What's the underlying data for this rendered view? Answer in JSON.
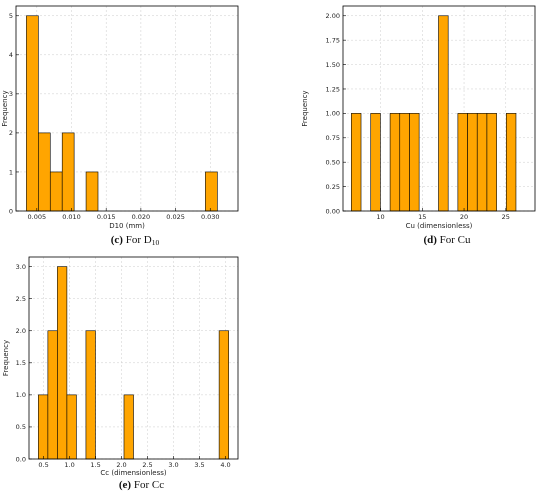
{
  "bar_color": "#FFA500",
  "chart_data": [
    {
      "type": "bar",
      "title": "",
      "xlabel": "D10 (mm)",
      "ylabel": "Frequency",
      "bin_edges": [
        0.0035,
        0.00522,
        0.00694,
        0.00866,
        0.01038,
        0.0121,
        0.01382,
        0.01554,
        0.01726,
        0.01898,
        0.0207,
        0.02242,
        0.02414,
        0.02586,
        0.02758,
        0.0293,
        0.03102,
        0.03274
      ],
      "values": [
        5,
        2,
        1,
        2,
        0,
        1,
        0,
        0,
        0,
        0,
        0,
        0,
        0,
        0,
        0,
        1,
        0
      ],
      "xlim": [
        0.002,
        0.034
      ],
      "ylim": [
        0,
        5.25
      ],
      "xticks": [
        0.005,
        0.01,
        0.015,
        0.02,
        0.025,
        0.03
      ],
      "xtick_labels": [
        "0.005",
        "0.010",
        "0.015",
        "0.020",
        "0.025",
        "0.030"
      ],
      "yticks": [
        0,
        1,
        2,
        3,
        4,
        5
      ],
      "ytick_labels": [
        "0",
        "1",
        "2",
        "3",
        "4",
        "5"
      ],
      "grid": true,
      "caption_letter": "(c)",
      "caption_text": "For D",
      "caption_sub": "10"
    },
    {
      "type": "bar",
      "title": "",
      "xlabel": "Cu (dimensionless)",
      "ylabel": "Frequency",
      "bin_edges": [
        6.5,
        7.66,
        8.82,
        9.98,
        11.14,
        12.3,
        13.46,
        14.62,
        15.78,
        16.94,
        18.1,
        19.26,
        20.42,
        21.58,
        22.74,
        23.9,
        25.06,
        26.22,
        27.38
      ],
      "values": [
        1,
        0,
        1,
        0,
        1,
        1,
        1,
        0,
        0,
        2,
        0,
        1,
        1,
        1,
        1,
        0,
        1,
        0
      ],
      "values_note": "",
      "xlim": [
        5.5,
        28.5
      ],
      "ylim": [
        0,
        2.1
      ],
      "xticks": [
        10,
        15,
        20,
        25
      ],
      "xtick_labels": [
        "10",
        "15",
        "20",
        "25"
      ],
      "yticks": [
        0,
        0.25,
        0.5,
        0.75,
        1.0,
        1.25,
        1.5,
        1.75,
        2.0
      ],
      "ytick_labels": [
        "0.00",
        "0.25",
        "0.50",
        "0.75",
        "1.00",
        "1.25",
        "1.50",
        "1.75",
        "2.00"
      ],
      "grid": true,
      "caption_letter": "(d)",
      "caption_text": "For Cu",
      "caption_sub": ""
    },
    {
      "type": "bar",
      "title": "",
      "xlabel": "Cc (dimensionless)",
      "ylabel": "Frequency",
      "bin_edges": [
        0.4,
        0.583,
        0.766,
        0.949,
        1.132,
        1.315,
        1.498,
        1.681,
        1.864,
        2.047,
        2.23,
        2.413,
        2.596,
        2.779,
        2.962,
        3.145,
        3.328,
        3.511,
        3.694,
        3.877,
        4.06
      ],
      "values": [
        1,
        2,
        3,
        1,
        0,
        2,
        0,
        0,
        0,
        1,
        0,
        0,
        0,
        0,
        0,
        0,
        0,
        0,
        0,
        2
      ],
      "xlim": [
        0.22,
        4.24
      ],
      "ylim": [
        0,
        3.15
      ],
      "xticks": [
        0.5,
        1.0,
        1.5,
        2.0,
        2.5,
        3.0,
        3.5,
        4.0
      ],
      "xtick_labels": [
        "0.5",
        "1.0",
        "1.5",
        "2.0",
        "2.5",
        "3.0",
        "3.5",
        "4.0"
      ],
      "yticks": [
        0,
        0.5,
        1.0,
        1.5,
        2.0,
        2.5,
        3.0
      ],
      "ytick_labels": [
        "0.0",
        "0.5",
        "1.0",
        "1.5",
        "2.0",
        "2.5",
        "3.0"
      ],
      "grid": true,
      "caption_letter": "(e)",
      "caption_text": "For Cc",
      "caption_sub": ""
    }
  ]
}
